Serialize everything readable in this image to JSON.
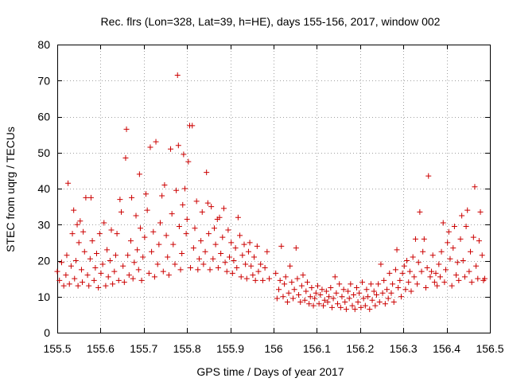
{
  "chart_data": {
    "type": "scatter",
    "title": "Rec. flrs (Lon=328, Lat=39, h=HE), days 155-156, 2017, window 002",
    "xlabel": "GPS time / Days of year 2017",
    "ylabel": "STEC from uqrg / TECUs",
    "xlim": [
      155.5,
      156.5
    ],
    "ylim": [
      0,
      80
    ],
    "xticks": [
      155.5,
      155.6,
      155.7,
      155.8,
      155.9,
      156,
      156.1,
      156.2,
      156.3,
      156.4,
      156.5
    ],
    "xtick_labels": [
      "155.5",
      "155.6",
      "155.7",
      "155.8",
      "155.9",
      "156",
      "156.1",
      "156.2",
      "156.3",
      "156.4",
      "156.5"
    ],
    "yticks": [
      0,
      10,
      20,
      30,
      40,
      50,
      60,
      70,
      80
    ],
    "ytick_labels": [
      "0",
      "10",
      "20",
      "30",
      "40",
      "50",
      "60",
      "70",
      "80"
    ],
    "grid": true,
    "marker": "+",
    "color": "#cc0000",
    "series": [
      {
        "name": "STEC",
        "points": [
          [
            155.5,
            17.0
          ],
          [
            155.505,
            14.5
          ],
          [
            155.51,
            19.5
          ],
          [
            155.515,
            13.0
          ],
          [
            155.52,
            16.0
          ],
          [
            155.522,
            21.5
          ],
          [
            155.525,
            41.5
          ],
          [
            155.528,
            13.5
          ],
          [
            155.532,
            18.5
          ],
          [
            155.535,
            27.5
          ],
          [
            155.538,
            34.0
          ],
          [
            155.54,
            15.0
          ],
          [
            155.543,
            20.0
          ],
          [
            155.546,
            30.0
          ],
          [
            155.548,
            13.0
          ],
          [
            155.55,
            25.0
          ],
          [
            155.553,
            31.0
          ],
          [
            155.556,
            17.5
          ],
          [
            155.558,
            14.0
          ],
          [
            155.56,
            28.0
          ],
          [
            155.563,
            22.5
          ],
          [
            155.566,
            37.5
          ],
          [
            155.57,
            16.0
          ],
          [
            155.573,
            13.0
          ],
          [
            155.576,
            20.5
          ],
          [
            155.578,
            37.5
          ],
          [
            155.581,
            25.5
          ],
          [
            155.585,
            14.5
          ],
          [
            155.588,
            18.0
          ],
          [
            155.591,
            22.0
          ],
          [
            155.595,
            12.5
          ],
          [
            155.598,
            27.5
          ],
          [
            155.601,
            16.5
          ],
          [
            155.605,
            19.0
          ],
          [
            155.608,
            30.5
          ],
          [
            155.612,
            13.0
          ],
          [
            155.615,
            23.0
          ],
          [
            155.618,
            15.5
          ],
          [
            155.622,
            20.0
          ],
          [
            155.625,
            28.5
          ],
          [
            155.628,
            13.5
          ],
          [
            155.632,
            17.0
          ],
          [
            155.635,
            21.5
          ],
          [
            155.638,
            27.5
          ],
          [
            155.642,
            14.5
          ],
          [
            155.645,
            37.0
          ],
          [
            155.648,
            33.5
          ],
          [
            155.652,
            18.5
          ],
          [
            155.655,
            14.0
          ],
          [
            155.658,
            48.5
          ],
          [
            155.66,
            56.5
          ],
          [
            155.663,
            21.5
          ],
          [
            155.666,
            16.0
          ],
          [
            155.67,
            25.5
          ],
          [
            155.672,
            37.5
          ],
          [
            155.675,
            15.0
          ],
          [
            155.678,
            19.5
          ],
          [
            155.682,
            32.5
          ],
          [
            155.685,
            23.0
          ],
          [
            155.688,
            17.5
          ],
          [
            155.69,
            44.0
          ],
          [
            155.692,
            29.0
          ],
          [
            155.695,
            14.5
          ],
          [
            155.698,
            21.0
          ],
          [
            155.702,
            26.5
          ],
          [
            155.705,
            38.5
          ],
          [
            155.708,
            34.0
          ],
          [
            155.712,
            16.5
          ],
          [
            155.715,
            51.5
          ],
          [
            155.718,
            22.5
          ],
          [
            155.722,
            28.0
          ],
          [
            155.725,
            15.5
          ],
          [
            155.728,
            53.0
          ],
          [
            155.732,
            19.0
          ],
          [
            155.735,
            24.5
          ],
          [
            155.738,
            30.5
          ],
          [
            155.742,
            38.0
          ],
          [
            155.745,
            17.0
          ],
          [
            155.748,
            41.0
          ],
          [
            155.752,
            27.0
          ],
          [
            155.755,
            21.0
          ],
          [
            155.758,
            16.0
          ],
          [
            155.762,
            51.0
          ],
          [
            155.765,
            33.0
          ],
          [
            155.768,
            24.5
          ],
          [
            155.772,
            19.0
          ],
          [
            155.775,
            39.5
          ],
          [
            155.778,
            71.5
          ],
          [
            155.78,
            52.0
          ],
          [
            155.782,
            29.5
          ],
          [
            155.785,
            17.5
          ],
          [
            155.788,
            22.0
          ],
          [
            155.79,
            35.5
          ],
          [
            155.792,
            49.5
          ],
          [
            155.795,
            40.0
          ],
          [
            155.798,
            27.5
          ],
          [
            155.8,
            31.5
          ],
          [
            155.803,
            47.5
          ],
          [
            155.806,
            57.5
          ],
          [
            155.808,
            18.0
          ],
          [
            155.812,
            57.5
          ],
          [
            155.815,
            23.5
          ],
          [
            155.818,
            29.0
          ],
          [
            155.822,
            36.5
          ],
          [
            155.825,
            17.5
          ],
          [
            155.828,
            20.5
          ],
          [
            155.832,
            25.5
          ],
          [
            155.835,
            33.5
          ],
          [
            155.838,
            19.0
          ],
          [
            155.842,
            22.5
          ],
          [
            155.845,
            44.5
          ],
          [
            155.848,
            36.0
          ],
          [
            155.85,
            27.5
          ],
          [
            155.853,
            17.5
          ],
          [
            155.856,
            35.0
          ],
          [
            155.86,
            20.5
          ],
          [
            155.863,
            29.0
          ],
          [
            155.866,
            24.5
          ],
          [
            155.87,
            31.5
          ],
          [
            155.872,
            18.0
          ],
          [
            155.875,
            32.0
          ],
          [
            155.878,
            22.0
          ],
          [
            155.882,
            26.5
          ],
          [
            155.885,
            34.5
          ],
          [
            155.888,
            19.5
          ],
          [
            155.892,
            17.0
          ],
          [
            155.895,
            28.5
          ],
          [
            155.898,
            21.0
          ],
          [
            155.902,
            25.0
          ],
          [
            155.905,
            16.5
          ],
          [
            155.908,
            20.0
          ],
          [
            155.912,
            23.5
          ],
          [
            155.915,
            18.0
          ],
          [
            155.918,
            32.0
          ],
          [
            155.922,
            27.0
          ],
          [
            155.925,
            15.5
          ],
          [
            155.928,
            21.5
          ],
          [
            155.932,
            24.5
          ],
          [
            155.935,
            19.0
          ],
          [
            155.938,
            15.0
          ],
          [
            155.942,
            22.5
          ],
          [
            155.945,
            25.0
          ],
          [
            155.948,
            18.5
          ],
          [
            155.952,
            16.0
          ],
          [
            155.955,
            21.0
          ],
          [
            155.958,
            14.5
          ],
          [
            155.962,
            24.0
          ],
          [
            155.965,
            17.0
          ],
          [
            155.97,
            19.0
          ],
          [
            155.975,
            14.5
          ],
          [
            155.98,
            18.0
          ],
          [
            155.985,
            22.5
          ],
          [
            155.99,
            15.0
          ],
          [
            156.005,
            16.5
          ],
          [
            156.008,
            9.5
          ],
          [
            156.012,
            12.0
          ],
          [
            156.015,
            14.5
          ],
          [
            156.018,
            24.0
          ],
          [
            156.022,
            10.0
          ],
          [
            156.025,
            13.5
          ],
          [
            156.028,
            15.5
          ],
          [
            156.032,
            8.5
          ],
          [
            156.035,
            11.0
          ],
          [
            156.038,
            18.5
          ],
          [
            156.042,
            14.0
          ],
          [
            156.045,
            9.5
          ],
          [
            156.048,
            12.0
          ],
          [
            156.052,
            23.5
          ],
          [
            156.055,
            15.0
          ],
          [
            156.058,
            10.5
          ],
          [
            156.062,
            8.5
          ],
          [
            156.065,
            13.0
          ],
          [
            156.068,
            16.0
          ],
          [
            156.072,
            9.0
          ],
          [
            156.075,
            11.5
          ],
          [
            156.078,
            14.0
          ],
          [
            156.082,
            8.0
          ],
          [
            156.085,
            10.0
          ],
          [
            156.088,
            12.5
          ],
          [
            156.092,
            7.5
          ],
          [
            156.095,
            9.5
          ],
          [
            156.098,
            11.0
          ],
          [
            156.102,
            13.0
          ],
          [
            156.105,
            8.0
          ],
          [
            156.108,
            10.5
          ],
          [
            156.112,
            12.0
          ],
          [
            156.115,
            7.5
          ],
          [
            156.118,
            9.0
          ],
          [
            156.122,
            11.5
          ],
          [
            156.125,
            8.5
          ],
          [
            156.128,
            10.0
          ],
          [
            156.132,
            12.5
          ],
          [
            156.135,
            7.0
          ],
          [
            156.138,
            9.5
          ],
          [
            156.142,
            15.5
          ],
          [
            156.145,
            11.0
          ],
          [
            156.148,
            8.0
          ],
          [
            156.152,
            13.5
          ],
          [
            156.155,
            7.0
          ],
          [
            156.158,
            10.0
          ],
          [
            156.162,
            12.0
          ],
          [
            156.165,
            8.5
          ],
          [
            156.168,
            6.5
          ],
          [
            156.172,
            11.5
          ],
          [
            156.175,
            9.5
          ],
          [
            156.178,
            13.5
          ],
          [
            156.182,
            7.5
          ],
          [
            156.185,
            10.5
          ],
          [
            156.188,
            6.5
          ],
          [
            156.192,
            12.5
          ],
          [
            156.195,
            8.5
          ],
          [
            156.198,
            11.0
          ],
          [
            156.202,
            7.0
          ],
          [
            156.205,
            14.0
          ],
          [
            156.208,
            9.5
          ],
          [
            156.212,
            7.5
          ],
          [
            156.215,
            12.0
          ],
          [
            156.218,
            10.0
          ],
          [
            156.222,
            6.5
          ],
          [
            156.225,
            13.5
          ],
          [
            156.228,
            9.0
          ],
          [
            156.232,
            11.5
          ],
          [
            156.235,
            7.5
          ],
          [
            156.238,
            10.5
          ],
          [
            156.242,
            13.5
          ],
          [
            156.245,
            8.5
          ],
          [
            156.248,
            19.0
          ],
          [
            156.252,
            11.0
          ],
          [
            156.255,
            14.5
          ],
          [
            156.258,
            8.0
          ],
          [
            156.262,
            12.0
          ],
          [
            156.265,
            9.5
          ],
          [
            156.268,
            16.5
          ],
          [
            156.272,
            11.0
          ],
          [
            156.275,
            13.5
          ],
          [
            156.278,
            8.5
          ],
          [
            156.282,
            17.5
          ],
          [
            156.285,
            23.0
          ],
          [
            156.288,
            12.5
          ],
          [
            156.292,
            14.5
          ],
          [
            156.295,
            10.0
          ],
          [
            156.298,
            16.5
          ],
          [
            156.302,
            18.5
          ],
          [
            156.305,
            12.0
          ],
          [
            156.308,
            20.0
          ],
          [
            156.312,
            14.0
          ],
          [
            156.315,
            17.0
          ],
          [
            156.318,
            11.5
          ],
          [
            156.322,
            21.0
          ],
          [
            156.325,
            15.5
          ],
          [
            156.328,
            26.0
          ],
          [
            156.332,
            13.5
          ],
          [
            156.335,
            19.5
          ],
          [
            156.338,
            33.5
          ],
          [
            156.342,
            17.0
          ],
          [
            156.345,
            22.5
          ],
          [
            156.348,
            26.0
          ],
          [
            156.352,
            12.5
          ],
          [
            156.355,
            18.0
          ],
          [
            156.358,
            43.5
          ],
          [
            156.362,
            15.5
          ],
          [
            156.365,
            17.0
          ],
          [
            156.368,
            21.5
          ],
          [
            156.372,
            14.0
          ],
          [
            156.375,
            16.5
          ],
          [
            156.378,
            13.0
          ],
          [
            156.382,
            19.0
          ],
          [
            156.385,
            15.5
          ],
          [
            156.388,
            22.5
          ],
          [
            156.392,
            30.5
          ],
          [
            156.395,
            14.0
          ],
          [
            156.398,
            17.5
          ],
          [
            156.402,
            25.0
          ],
          [
            156.405,
            28.0
          ],
          [
            156.408,
            20.5
          ],
          [
            156.412,
            13.0
          ],
          [
            156.415,
            23.5
          ],
          [
            156.418,
            29.5
          ],
          [
            156.422,
            16.0
          ],
          [
            156.425,
            19.5
          ],
          [
            156.428,
            14.5
          ],
          [
            156.432,
            26.0
          ],
          [
            156.435,
            32.5
          ],
          [
            156.438,
            20.0
          ],
          [
            156.442,
            15.5
          ],
          [
            156.445,
            29.5
          ],
          [
            156.448,
            34.0
          ],
          [
            156.452,
            17.0
          ],
          [
            156.455,
            22.5
          ],
          [
            156.458,
            14.0
          ],
          [
            156.462,
            26.5
          ],
          [
            156.465,
            40.5
          ],
          [
            156.468,
            18.5
          ],
          [
            156.472,
            15.0
          ],
          [
            156.475,
            25.5
          ],
          [
            156.478,
            33.5
          ],
          [
            156.482,
            21.5
          ],
          [
            156.485,
            14.5
          ],
          [
            156.488,
            15.0
          ]
        ]
      }
    ]
  }
}
